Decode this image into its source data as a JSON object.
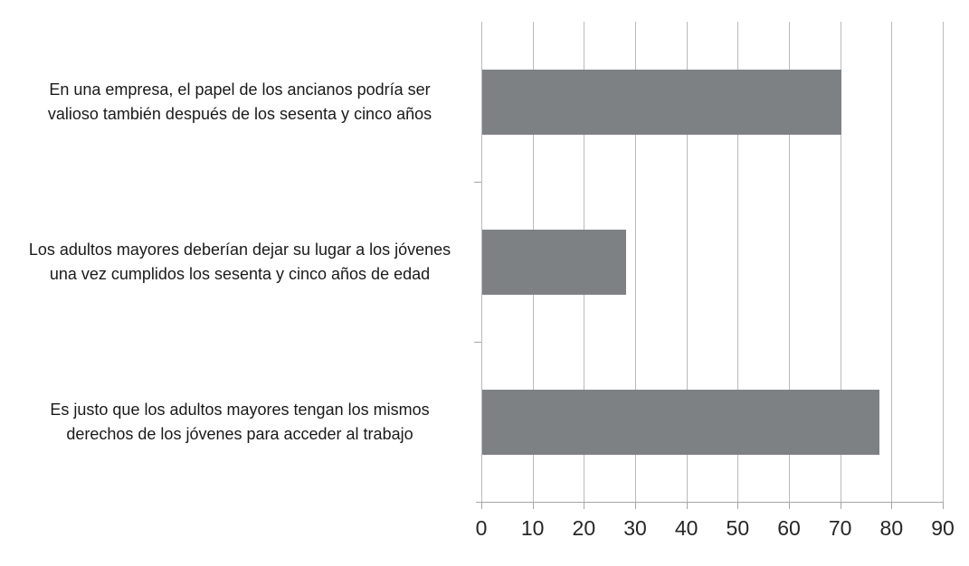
{
  "chart_data": {
    "type": "bar",
    "orientation": "horizontal",
    "title": "",
    "xlabel": "",
    "ylabel": "",
    "categories": [
      "En una empresa, el papel de los ancianos podría ser\nvalioso también después de los sesenta y cinco años",
      "Los adultos mayores deberían dejar su lugar a los jóvenes\nuna vez cumplidos los sesenta y cinco años de edad",
      "Es justo que los adultos mayores tengan los mismos\nderechos de los jóvenes para acceder al trabajo"
    ],
    "values": [
      70,
      28,
      77.5
    ],
    "xlim": [
      0,
      90
    ],
    "x_ticks": [
      0,
      10,
      20,
      30,
      40,
      50,
      60,
      70,
      80,
      90
    ],
    "grid": "vertical-gridlines-on",
    "legend": "none",
    "colors": {
      "bar_fill": "#7e8184",
      "gridline": "#b8babc",
      "axis_line": "#a6a6a6",
      "tick_label_text": "#262626",
      "category_label_text": "#1a1a1a",
      "background": "#ffffff"
    }
  }
}
